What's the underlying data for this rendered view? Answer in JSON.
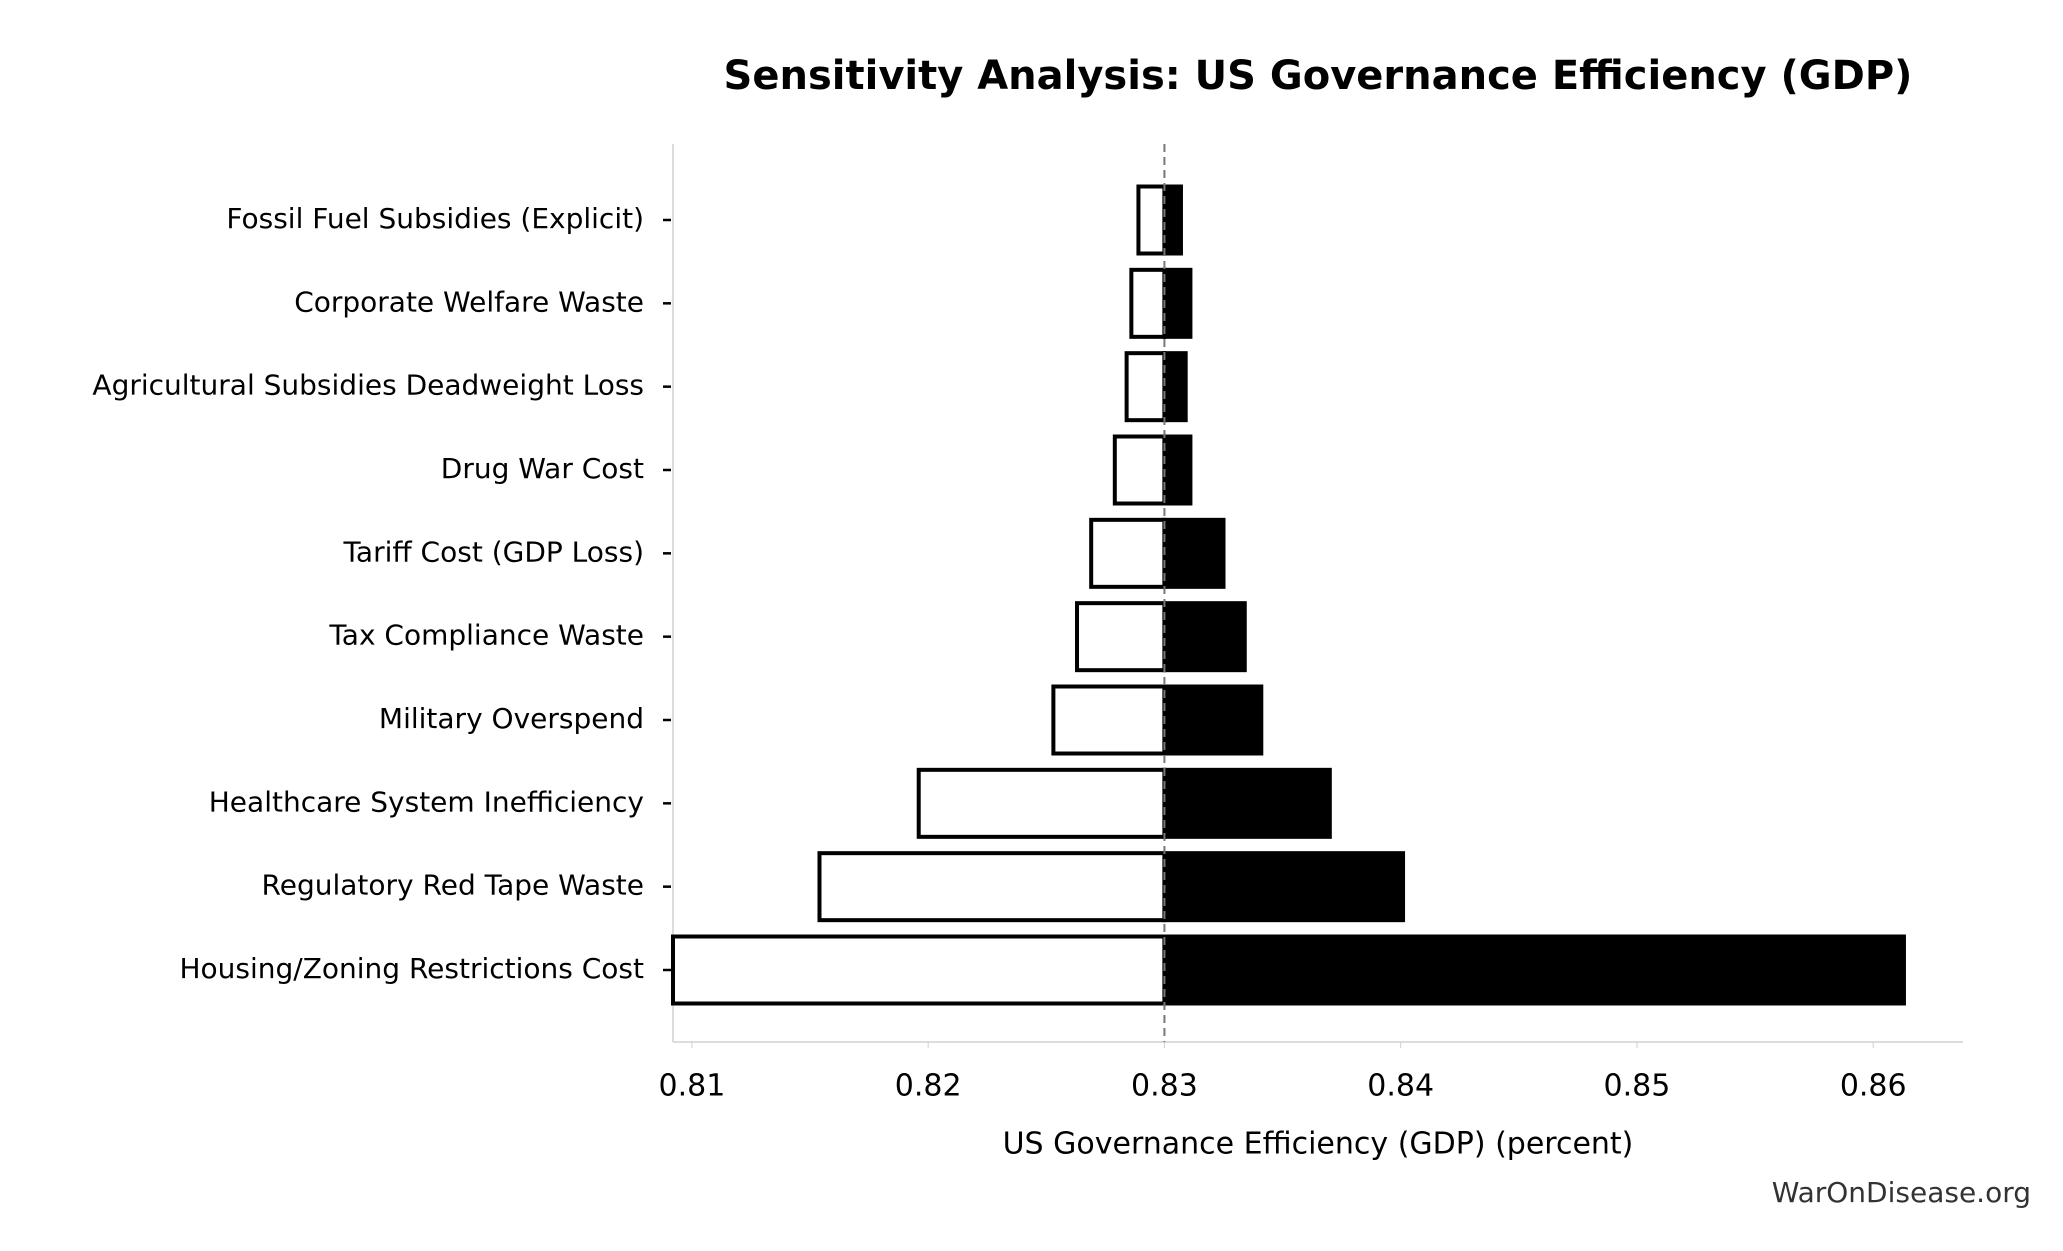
{
  "chart_data": {
    "type": "tornado",
    "title": "Sensitivity Analysis: US Governance Efficiency (GDP)",
    "xlabel": "US Governance Efficiency (GDP) (percent)",
    "watermark": "WarOnDisease.org",
    "categories": [
      "Fossil Fuel Subsidies (Explicit)",
      "Corporate Welfare Waste",
      "Agricultural Subsidies Deadweight Loss",
      "Drug War Cost",
      "Tariff Cost (GDP Loss)",
      "Tax Compliance Waste",
      "Military Overspend",
      "Healthcare System Inefficiency",
      "Regulatory Red Tape Waste",
      "Housing/Zoning Restrictions Cost"
    ],
    "baseline": 0.83,
    "series": [
      {
        "color": "#ffffff",
        "edgecolor": "#000000",
        "values": [
          0.8289,
          0.8286,
          0.8284,
          0.8279,
          0.8269,
          0.8263,
          0.8253,
          0.8196,
          0.8154,
          0.8092
        ]
      },
      {
        "color": "#000000",
        "edgecolor": "#000000",
        "values": [
          0.8307,
          0.8311,
          0.8309,
          0.8311,
          0.8325,
          0.8334,
          0.8341,
          0.837,
          0.8401,
          0.8613
        ]
      }
    ],
    "xlim": [
      0.8092,
      0.8638
    ],
    "xticks": [
      0.81,
      0.82,
      0.83,
      0.84,
      0.85,
      0.86
    ]
  }
}
